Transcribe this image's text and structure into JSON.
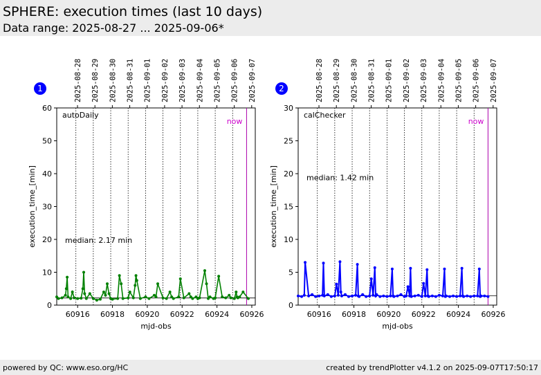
{
  "header": {
    "title": "SPHERE: execution times (last 10 days)",
    "subtitle": "Data range: 2025-08-27 ... 2025-09-06*"
  },
  "footer": {
    "left": "powered by QC: www.eso.org/HC",
    "right": "created by trendPlotter v4.1.2 on 2025-09-07T17:50:17"
  },
  "chart_data": [
    {
      "type": "line",
      "badge": "1",
      "label": "autoDaily",
      "color": "#008000",
      "xlabel": "mjd-obs",
      "ylabel": "execution_time_[min]",
      "xlim": [
        60914.8,
        60926.2
      ],
      "ylim": [
        0,
        60
      ],
      "xticks": [
        60916,
        60918,
        60920,
        60922,
        60924,
        60926
      ],
      "yticks": [
        0,
        10,
        20,
        30,
        40,
        50,
        60
      ],
      "date_ticks": [
        {
          "date": "2025-08-28",
          "x": 60915.0
        },
        {
          "date": "2025-08-29",
          "x": 60916.0
        },
        {
          "date": "2025-08-30",
          "x": 60917.0
        },
        {
          "date": "2025-08-31",
          "x": 60918.0
        },
        {
          "date": "2025-09-01",
          "x": 60919.0
        },
        {
          "date": "2025-09-02",
          "x": 60920.0
        },
        {
          "date": "2025-09-03",
          "x": 60921.0
        },
        {
          "date": "2025-09-04",
          "x": 60922.0
        },
        {
          "date": "2025-09-05",
          "x": 60923.0
        },
        {
          "date": "2025-09-06",
          "x": 60924.0
        },
        {
          "date": "2025-09-07",
          "x": 60925.0
        }
      ],
      "day_lines": [
        60915.9,
        60916.9,
        60917.9,
        60918.9,
        60919.9,
        60920.9,
        60921.9,
        60922.9,
        60923.9,
        60924.9
      ],
      "median_value": 2.17,
      "median_text": "median: 2.17 min",
      "now_text": "now",
      "now_x": 60925.7,
      "series": [
        {
          "x": [
            60914.8,
            60914.9,
            60915.1,
            60915.3,
            60915.35,
            60915.4,
            60915.45,
            60915.6,
            60915.7,
            60915.8,
            60916.0,
            60916.2,
            60916.3,
            60916.35,
            60916.4,
            60916.5,
            60916.7,
            60916.9,
            60917.1,
            60917.3,
            60917.5,
            60917.6,
            60917.7,
            60917.8,
            60917.9,
            60918.0,
            60918.3,
            60918.4,
            60918.5,
            60918.6,
            60918.9,
            60919.0,
            60919.2,
            60919.3,
            60919.35,
            60919.4,
            60919.6,
            60919.9,
            60920.1,
            60920.4,
            60920.5,
            60920.6,
            60920.9,
            60921.1,
            60921.3,
            60921.4,
            60921.5,
            60921.8,
            60921.9,
            60922.1,
            60922.4,
            60922.5,
            60922.6,
            60922.8,
            60922.9,
            60923.0,
            60923.3,
            60923.4,
            60923.5,
            60923.6,
            60923.8,
            60923.9,
            60924.1,
            60924.3,
            60924.5,
            60924.7,
            60924.8,
            60925.0,
            60925.1,
            60925.15,
            60925.2,
            60925.3,
            60925.5,
            60925.8
          ],
          "y": [
            2.5,
            2.0,
            2.2,
            3.0,
            5.0,
            8.5,
            2.5,
            2.0,
            4.0,
            2.2,
            2.0,
            2.1,
            5.0,
            10.0,
            3.5,
            2.0,
            3.5,
            2.0,
            1.5,
            1.8,
            4.0,
            3.0,
            6.5,
            3.5,
            2.0,
            1.8,
            2.0,
            9.0,
            6.5,
            2.0,
            2.2,
            4.0,
            2.2,
            6.0,
            9.0,
            7.5,
            2.0,
            2.5,
            2.0,
            3.0,
            2.5,
            6.5,
            2.2,
            2.0,
            4.0,
            2.5,
            2.0,
            2.5,
            8.0,
            2.2,
            3.5,
            2.5,
            2.0,
            2.5,
            2.0,
            2.2,
            10.5,
            6.5,
            2.0,
            2.5,
            2.0,
            2.2,
            8.8,
            2.5,
            2.2,
            3.0,
            2.2,
            2.0,
            4.0,
            2.5,
            2.2,
            2.5,
            4.0,
            2.0
          ]
        }
      ]
    },
    {
      "type": "line",
      "badge": "2",
      "label": "calChecker",
      "color": "#0000ff",
      "xlabel": "mjd-obs",
      "ylabel": "execution_time_[min]",
      "xlim": [
        60914.8,
        60926.2
      ],
      "ylim": [
        0,
        30
      ],
      "xticks": [
        60916,
        60918,
        60920,
        60922,
        60924,
        60926
      ],
      "yticks": [
        0,
        5,
        10,
        15,
        20,
        25,
        30
      ],
      "date_ticks": [
        {
          "date": "2025-08-28",
          "x": 60915.0
        },
        {
          "date": "2025-08-29",
          "x": 60916.0
        },
        {
          "date": "2025-08-30",
          "x": 60917.0
        },
        {
          "date": "2025-08-31",
          "x": 60918.0
        },
        {
          "date": "2025-09-01",
          "x": 60919.0
        },
        {
          "date": "2025-09-02",
          "x": 60920.0
        },
        {
          "date": "2025-09-03",
          "x": 60921.0
        },
        {
          "date": "2025-09-04",
          "x": 60922.0
        },
        {
          "date": "2025-09-05",
          "x": 60923.0
        },
        {
          "date": "2025-09-06",
          "x": 60924.0
        },
        {
          "date": "2025-09-07",
          "x": 60925.0
        }
      ],
      "day_lines": [
        60915.9,
        60916.9,
        60917.9,
        60918.9,
        60919.9,
        60920.9,
        60921.9,
        60922.9,
        60923.9,
        60924.9
      ],
      "median_value": 1.42,
      "median_text": "median: 1.42 min",
      "now_text": "now",
      "now_x": 60925.7,
      "series": [
        {
          "x": [
            60914.8,
            60915.0,
            60915.15,
            60915.2,
            60915.4,
            60915.6,
            60915.8,
            60916.0,
            60916.2,
            60916.25,
            60916.3,
            60916.5,
            60916.7,
            60916.9,
            60917.0,
            60917.1,
            60917.2,
            60917.25,
            60917.3,
            60917.5,
            60917.7,
            60917.9,
            60918.1,
            60918.2,
            60918.25,
            60918.3,
            60918.5,
            60918.7,
            60918.9,
            60919.0,
            60919.1,
            60919.2,
            60919.25,
            60919.3,
            60919.5,
            60919.7,
            60919.9,
            60920.1,
            60920.2,
            60920.25,
            60920.3,
            60920.5,
            60920.7,
            60920.9,
            60921.0,
            60921.1,
            60921.2,
            60921.25,
            60921.3,
            60921.5,
            60921.7,
            60921.9,
            60922.0,
            60922.1,
            60922.2,
            60922.25,
            60922.3,
            60922.5,
            60922.7,
            60922.9,
            60923.1,
            60923.2,
            60923.25,
            60923.3,
            60923.5,
            60923.7,
            60923.9,
            60924.1,
            60924.2,
            60924.25,
            60924.3,
            60924.5,
            60924.7,
            60924.9,
            60925.1,
            60925.2,
            60925.25,
            60925.3,
            60925.5,
            60925.7
          ],
          "y": [
            1.4,
            1.3,
            1.5,
            6.5,
            1.4,
            1.6,
            1.3,
            1.4,
            1.5,
            6.4,
            1.4,
            1.6,
            1.3,
            1.4,
            3.2,
            1.5,
            6.6,
            2.0,
            1.4,
            1.6,
            1.3,
            1.4,
            1.5,
            6.2,
            1.4,
            1.3,
            1.6,
            1.3,
            1.4,
            4.0,
            1.5,
            5.7,
            1.4,
            1.6,
            1.3,
            1.4,
            1.3,
            1.4,
            5.5,
            1.4,
            1.3,
            1.4,
            1.6,
            1.3,
            1.4,
            2.8,
            1.4,
            5.6,
            1.3,
            1.4,
            1.5,
            1.3,
            3.3,
            1.4,
            5.4,
            1.4,
            1.3,
            1.4,
            1.3,
            1.5,
            1.4,
            5.5,
            1.3,
            1.4,
            1.3,
            1.4,
            1.3,
            1.4,
            5.6,
            1.4,
            1.3,
            1.4,
            1.3,
            1.4,
            1.4,
            5.5,
            1.3,
            1.4,
            1.4,
            1.3
          ]
        }
      ]
    }
  ]
}
